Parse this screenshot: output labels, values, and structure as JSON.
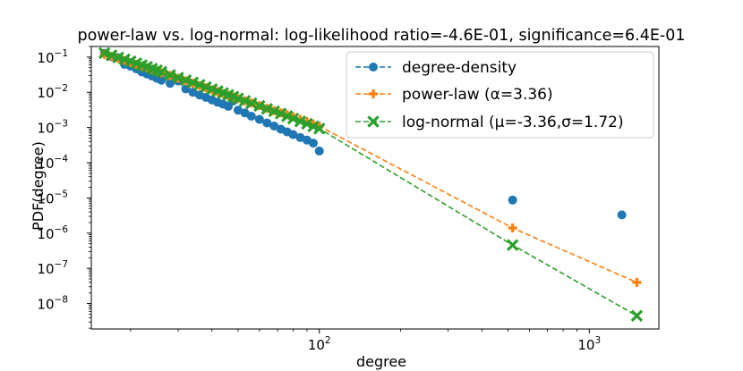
{
  "chart_data": {
    "type": "scatter",
    "title": "power-law vs. log-normal: log-likelihood ratio=-4.6E-01, significance=6.4E-01",
    "xlabel": "degree",
    "ylabel": "PDF(degree)",
    "xscale": "log",
    "yscale": "log",
    "xlim": [
      14.3,
      1810
    ],
    "ylim": [
      1.9e-09,
      0.2
    ],
    "x_ticks": [
      {
        "value": 100,
        "base": "10",
        "exp": "2"
      },
      {
        "value": 1000,
        "base": "10",
        "exp": "3"
      }
    ],
    "y_ticks": [
      {
        "value": 0.1,
        "base": "10",
        "exp": "−1"
      },
      {
        "value": 0.01,
        "base": "10",
        "exp": "−2"
      },
      {
        "value": 0.001,
        "base": "10",
        "exp": "−3"
      },
      {
        "value": 0.0001,
        "base": "10",
        "exp": "−4"
      },
      {
        "value": 1e-05,
        "base": "10",
        "exp": "−5"
      },
      {
        "value": 1e-06,
        "base": "10",
        "exp": "−6"
      },
      {
        "value": 1e-07,
        "base": "10",
        "exp": "−7"
      },
      {
        "value": 1e-08,
        "base": "10",
        "exp": "−8"
      }
    ],
    "legend": {
      "position": "top-right",
      "entries": [
        {
          "label": "degree-density",
          "series": 0
        },
        {
          "label": "power-law (α=3.36)",
          "series": 1
        },
        {
          "label": "log-normal (μ=-3.36,σ=1.72)",
          "series": 2
        }
      ]
    },
    "series": [
      {
        "name": "degree-density",
        "color": "#1f77b4",
        "marker": "circle",
        "linestyle": "none",
        "x": [
          16,
          17,
          18,
          19,
          20,
          21,
          22,
          23,
          24,
          25,
          26,
          28,
          30,
          32,
          34,
          36,
          38,
          40,
          42,
          44,
          46,
          48,
          50,
          53,
          56,
          60,
          64,
          68,
          72,
          76,
          80,
          85,
          90,
          95,
          100,
          520,
          1320
        ],
        "y": [
          0.128,
          0.103,
          0.096,
          0.062,
          0.055,
          0.046,
          0.038,
          0.033,
          0.029,
          0.025,
          0.022,
          0.018,
          0.021,
          0.0125,
          0.01,
          0.0084,
          0.0072,
          0.0061,
          0.0052,
          0.0046,
          0.004,
          0.0057,
          0.0031,
          0.0026,
          0.0021,
          0.0017,
          0.00135,
          0.0011,
          0.0009,
          0.00075,
          0.00063,
          0.00052,
          0.00044,
          0.00036,
          0.000215,
          8.7e-06,
          3.3e-06
        ]
      },
      {
        "name": "power-law (α=3.36)",
        "color": "#ff7f0e",
        "marker": "plus",
        "linestyle": "dashed",
        "x": [
          16,
          17,
          18,
          19,
          20,
          21,
          22,
          23,
          24,
          25,
          26,
          28,
          30,
          32,
          34,
          36,
          38,
          40,
          42,
          44,
          46,
          48,
          50,
          53,
          56,
          60,
          64,
          68,
          72,
          76,
          80,
          85,
          90,
          95,
          100,
          520,
          1500
        ],
        "y": [
          0.12,
          0.104,
          0.091,
          0.08,
          0.07,
          0.062,
          0.055,
          0.049,
          0.044,
          0.04,
          0.036,
          0.03,
          0.025,
          0.021,
          0.018,
          0.0155,
          0.0135,
          0.0118,
          0.0104,
          0.0092,
          0.0082,
          0.0073,
          0.0066,
          0.0057,
          0.005,
          0.0042,
          0.0035,
          0.003,
          0.0026,
          0.0023,
          0.002,
          0.0017,
          0.00146,
          0.00126,
          0.00109,
          1.4e-06,
          4e-08
        ]
      },
      {
        "name": "log-normal (μ=-3.36,σ=1.72)",
        "color": "#2ca02c",
        "marker": "x",
        "linestyle": "dashed",
        "x": [
          16,
          17,
          18,
          19,
          20,
          21,
          22,
          23,
          24,
          25,
          26,
          28,
          30,
          32,
          34,
          36,
          38,
          40,
          42,
          44,
          46,
          48,
          50,
          53,
          56,
          60,
          64,
          68,
          72,
          76,
          80,
          85,
          90,
          95,
          100,
          520,
          1500
        ],
        "y": [
          0.13,
          0.112,
          0.098,
          0.086,
          0.076,
          0.067,
          0.059,
          0.053,
          0.047,
          0.042,
          0.038,
          0.031,
          0.026,
          0.022,
          0.019,
          0.0163,
          0.0141,
          0.0123,
          0.0108,
          0.0095,
          0.0084,
          0.0075,
          0.0067,
          0.0057,
          0.0049,
          0.0041,
          0.0034,
          0.0029,
          0.0025,
          0.0021,
          0.0018,
          0.0015,
          0.00127,
          0.00108,
          0.00093,
          4.6e-07,
          4.5e-09
        ]
      }
    ]
  }
}
